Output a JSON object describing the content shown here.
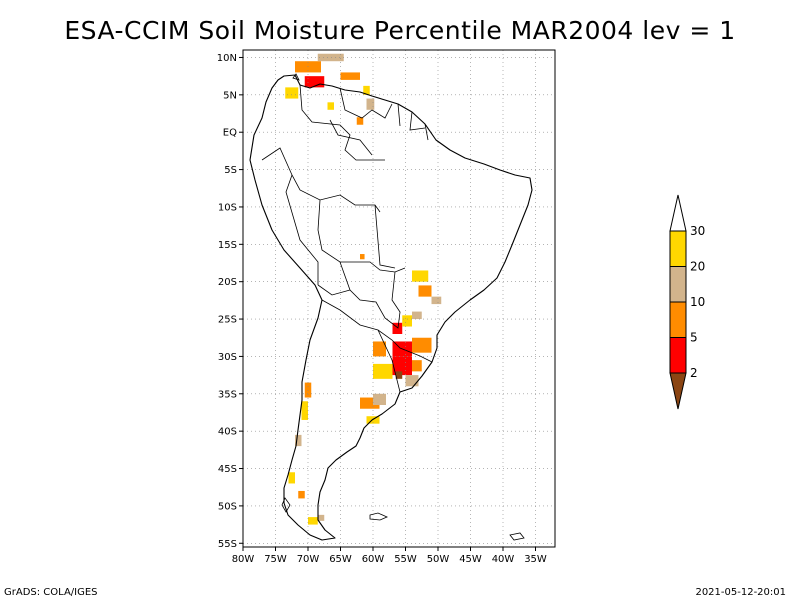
{
  "title": "ESA-CCIM Soil Moisture Percentile MAR2004 lev = 1",
  "footer": {
    "left": "GrADS: COLA/IGES",
    "right": "2021-05-12-20:01"
  },
  "colors": {
    "lt2": "#8b4513",
    "2to5": "#ff0000",
    "5to10": "#ff8c00",
    "10to20": "#d2b48c",
    "20to30": "#ffd700",
    "gt30": "#ffffff",
    "coast": "#000000",
    "grid": "#888888"
  },
  "map": {
    "lon_range": [
      -80,
      -32
    ],
    "lat_range": [
      -55.5,
      11
    ],
    "lat_ticks": [
      {
        "v": 10,
        "label": "10N"
      },
      {
        "v": 5,
        "label": "5N"
      },
      {
        "v": 0,
        "label": "EQ"
      },
      {
        "v": -5,
        "label": "5S"
      },
      {
        "v": -10,
        "label": "10S"
      },
      {
        "v": -15,
        "label": "15S"
      },
      {
        "v": -20,
        "label": "20S"
      },
      {
        "v": -25,
        "label": "25S"
      },
      {
        "v": -30,
        "label": "30S"
      },
      {
        "v": -35,
        "label": "35S"
      },
      {
        "v": -40,
        "label": "40S"
      },
      {
        "v": -45,
        "label": "45S"
      },
      {
        "v": -50,
        "label": "50S"
      },
      {
        "v": -55,
        "label": "55S"
      }
    ],
    "lon_ticks": [
      {
        "v": -80,
        "label": "80W"
      },
      {
        "v": -75,
        "label": "75W"
      },
      {
        "v": -70,
        "label": "70W"
      },
      {
        "v": -65,
        "label": "65W"
      },
      {
        "v": -60,
        "label": "60W"
      },
      {
        "v": -55,
        "label": "55W"
      },
      {
        "v": -50,
        "label": "50W"
      },
      {
        "v": -45,
        "label": "45W"
      },
      {
        "v": -40,
        "label": "40W"
      },
      {
        "v": -35,
        "label": "35W"
      }
    ]
  },
  "colorbar": {
    "labels": [
      "2",
      "5",
      "10",
      "20",
      "30"
    ],
    "bins": [
      "lt2",
      "2to5",
      "5to10",
      "10to20",
      "20to30",
      "gt30"
    ]
  },
  "anomaly_patches": [
    {
      "lon": -72,
      "lat": 8,
      "dlon": 4,
      "dlat": 1.5,
      "bin": "5to10"
    },
    {
      "lon": -70.5,
      "lat": 6,
      "dlon": 3,
      "dlat": 1.5,
      "bin": "2to5"
    },
    {
      "lon": -73.5,
      "lat": 4.5,
      "dlon": 2,
      "dlat": 1.5,
      "bin": "20to30"
    },
    {
      "lon": -68.5,
      "lat": 9.5,
      "dlon": 4,
      "dlat": 1,
      "bin": "10to20"
    },
    {
      "lon": -65,
      "lat": 7,
      "dlon": 3,
      "dlat": 1,
      "bin": "5to10"
    },
    {
      "lon": -61.5,
      "lat": 5,
      "dlon": 1,
      "dlat": 1.2,
      "bin": "20to30"
    },
    {
      "lon": -61,
      "lat": 3,
      "dlon": 1.2,
      "dlat": 1.5,
      "bin": "10to20"
    },
    {
      "lon": -62.5,
      "lat": 1,
      "dlon": 1,
      "dlat": 1,
      "bin": "5to10"
    },
    {
      "lon": -67,
      "lat": 3,
      "dlon": 1,
      "dlat": 1,
      "bin": "20to30"
    },
    {
      "lon": -62,
      "lat": -17,
      "dlon": 0.7,
      "dlat": 0.7,
      "bin": "5to10"
    },
    {
      "lon": -54,
      "lat": -20,
      "dlon": 2.5,
      "dlat": 1.5,
      "bin": "20to30"
    },
    {
      "lon": -53,
      "lat": -22,
      "dlon": 2,
      "dlat": 1.5,
      "bin": "5to10"
    },
    {
      "lon": -51,
      "lat": -23,
      "dlon": 1.5,
      "dlat": 1,
      "bin": "10to20"
    },
    {
      "lon": -57,
      "lat": -27,
      "dlon": 1.5,
      "dlat": 1.5,
      "bin": "2to5"
    },
    {
      "lon": -55.5,
      "lat": -26,
      "dlon": 1.5,
      "dlat": 1.5,
      "bin": "20to30"
    },
    {
      "lon": -54,
      "lat": -25,
      "dlon": 1.5,
      "dlat": 1,
      "bin": "10to20"
    },
    {
      "lon": -60,
      "lat": -30,
      "dlon": 2,
      "dlat": 2,
      "bin": "5to10"
    },
    {
      "lon": -57,
      "lat": -30,
      "dlon": 3,
      "dlat": 2,
      "bin": "2to5"
    },
    {
      "lon": -54,
      "lat": -29.5,
      "dlon": 3,
      "dlat": 2,
      "bin": "5to10"
    },
    {
      "lon": -60,
      "lat": -33,
      "dlon": 3,
      "dlat": 2,
      "bin": "20to30"
    },
    {
      "lon": -57,
      "lat": -32.5,
      "dlon": 3,
      "dlat": 2.5,
      "bin": "2to5"
    },
    {
      "lon": -55,
      "lat": -34,
      "dlon": 2,
      "dlat": 1.5,
      "bin": "10to20"
    },
    {
      "lon": -54,
      "lat": -32,
      "dlon": 1.5,
      "dlat": 1.5,
      "bin": "5to10"
    },
    {
      "lon": -62,
      "lat": -37,
      "dlon": 3,
      "dlat": 1.5,
      "bin": "5to10"
    },
    {
      "lon": -60,
      "lat": -36.5,
      "dlon": 2,
      "dlat": 1.5,
      "bin": "10to20"
    },
    {
      "lon": -61,
      "lat": -39,
      "dlon": 2,
      "dlat": 1,
      "bin": "20to30"
    },
    {
      "lon": -70.5,
      "lat": -35.5,
      "dlon": 1,
      "dlat": 2,
      "bin": "5to10"
    },
    {
      "lon": -71,
      "lat": -38.5,
      "dlon": 1,
      "dlat": 2.5,
      "bin": "20to30"
    },
    {
      "lon": -72,
      "lat": -42,
      "dlon": 1,
      "dlat": 1.5,
      "bin": "10to20"
    },
    {
      "lon": -73,
      "lat": -47,
      "dlon": 1,
      "dlat": 1.5,
      "bin": "20to30"
    },
    {
      "lon": -71.5,
      "lat": -49,
      "dlon": 1,
      "dlat": 1,
      "bin": "5to10"
    },
    {
      "lon": -70,
      "lat": -52.5,
      "dlon": 1.5,
      "dlat": 1,
      "bin": "20to30"
    },
    {
      "lon": -68.5,
      "lat": -52,
      "dlon": 1,
      "dlat": 0.8,
      "bin": "10to20"
    },
    {
      "lon": -56.5,
      "lat": -33,
      "dlon": 1,
      "dlat": 1,
      "bin": "lt2"
    }
  ]
}
